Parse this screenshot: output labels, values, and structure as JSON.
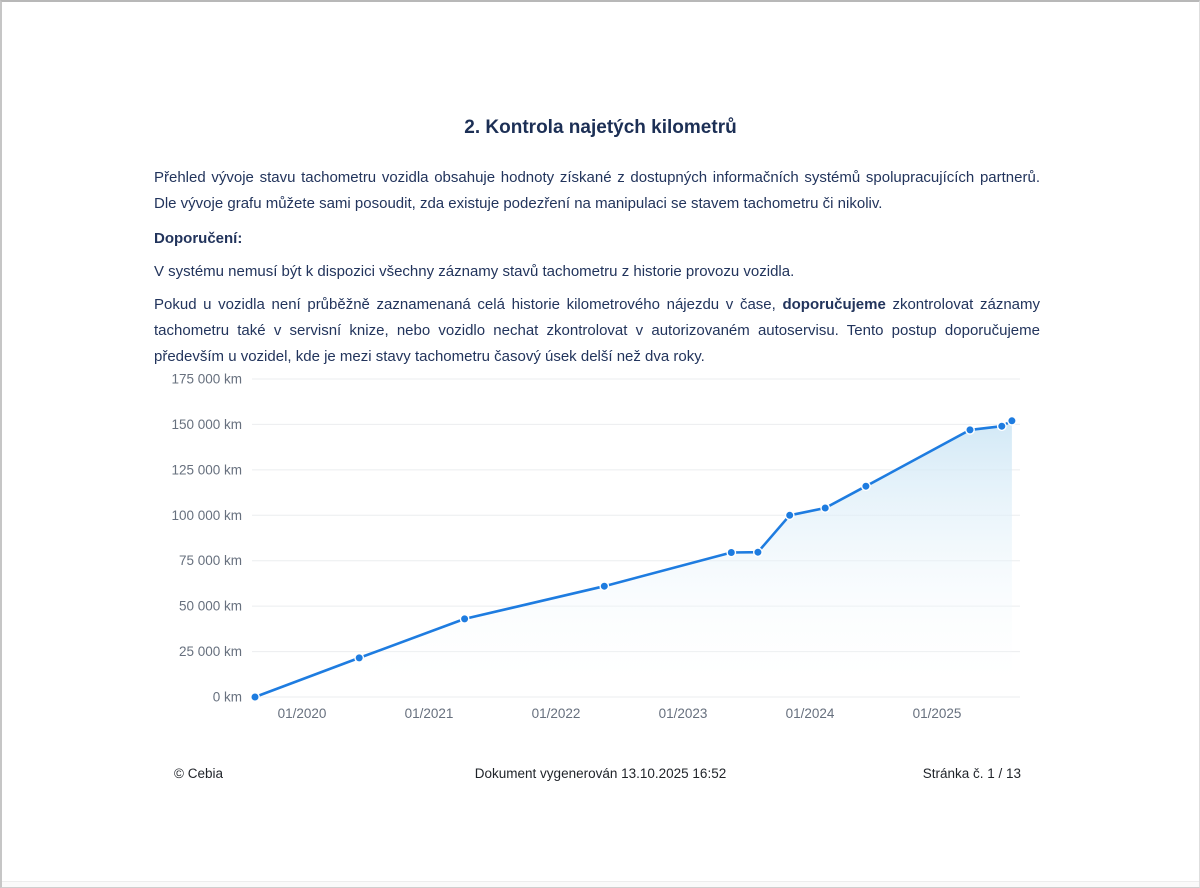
{
  "page": {
    "title": "2. Kontrola najetých kilometrů",
    "paragraph1": "Přehled vývoje stavu tachometru vozidla obsahuje hodnoty získané z dostupných informačních systémů spolupracujících partnerů. Dle vývoje grafu můžete sami posoudit, zda existuje podezření na manipulaci se stavem tachometru či nikoliv.",
    "recommendation_label": "Doporučení:",
    "paragraph2": "V systému nemusí být k dispozici všechny záznamy stavů tachometru z historie provozu vozidla.",
    "paragraph3_before": "Pokud u vozidla není průběžně zaznamenaná celá historie kilometrového nájezdu v čase, ",
    "paragraph3_bold": "doporučujeme",
    "paragraph3_after": " zkontrolovat záznamy tachometru také v servisní knize, nebo vozidlo nechat zkontrolovat v autorizovaném autoservisu. Tento postup doporučujeme především u vozidel, kde je mezi stavy tachometru časový úsek delší než dva roky."
  },
  "footer": {
    "copyright": "© Cebia",
    "generated": "Dokument vygenerován 13.10.2025 16:52",
    "page_number": "Stránka č. 1 / 13"
  },
  "colors": {
    "accent_blue": "#1e7ce0",
    "text_navy": "#22345c",
    "axis_gray": "#67707e",
    "gridline": "#ebedef"
  },
  "chart_data": {
    "type": "area",
    "title": "",
    "xlabel": "",
    "ylabel": "",
    "unit": "km",
    "grid": true,
    "legend": false,
    "ylim": [
      0,
      175000
    ],
    "xlim_years": [
      2019.6,
      2025.65
    ],
    "x_years_decimal": [
      2019.63,
      2020.45,
      2021.28,
      2022.38,
      2023.38,
      2023.59,
      2023.84,
      2024.12,
      2024.44,
      2025.26,
      2025.51,
      2025.59
    ],
    "dates_estimated": [
      "08/2019",
      "06/2020",
      "04/2021",
      "05/2022",
      "05/2023",
      "08/2023",
      "11/2023",
      "02/2024",
      "06/2024",
      "04/2025",
      "07/2025",
      "08/2025"
    ],
    "values_km": [
      0,
      21500,
      43000,
      61000,
      79500,
      79700,
      100000,
      104000,
      116000,
      147000,
      149000,
      152000
    ],
    "y_ticks": {
      "values": [
        175000,
        150000,
        125000,
        100000,
        75000,
        50000,
        25000,
        0
      ],
      "labels": [
        "175 000 km",
        "150 000 km",
        "125 000 km",
        "100 000 km",
        "75 000 km",
        "50 000 km",
        "25 000 km",
        "0 km"
      ]
    },
    "x_ticks": {
      "values": [
        2020,
        2021,
        2022,
        2023,
        2024,
        2025
      ],
      "labels": [
        "01/2020",
        "01/2021",
        "01/2022",
        "01/2023",
        "01/2024",
        "01/2025"
      ]
    },
    "line_color": "#1e7ce0",
    "point_color": "#1e7ce0",
    "fill_top_color": "#cde6f5"
  }
}
